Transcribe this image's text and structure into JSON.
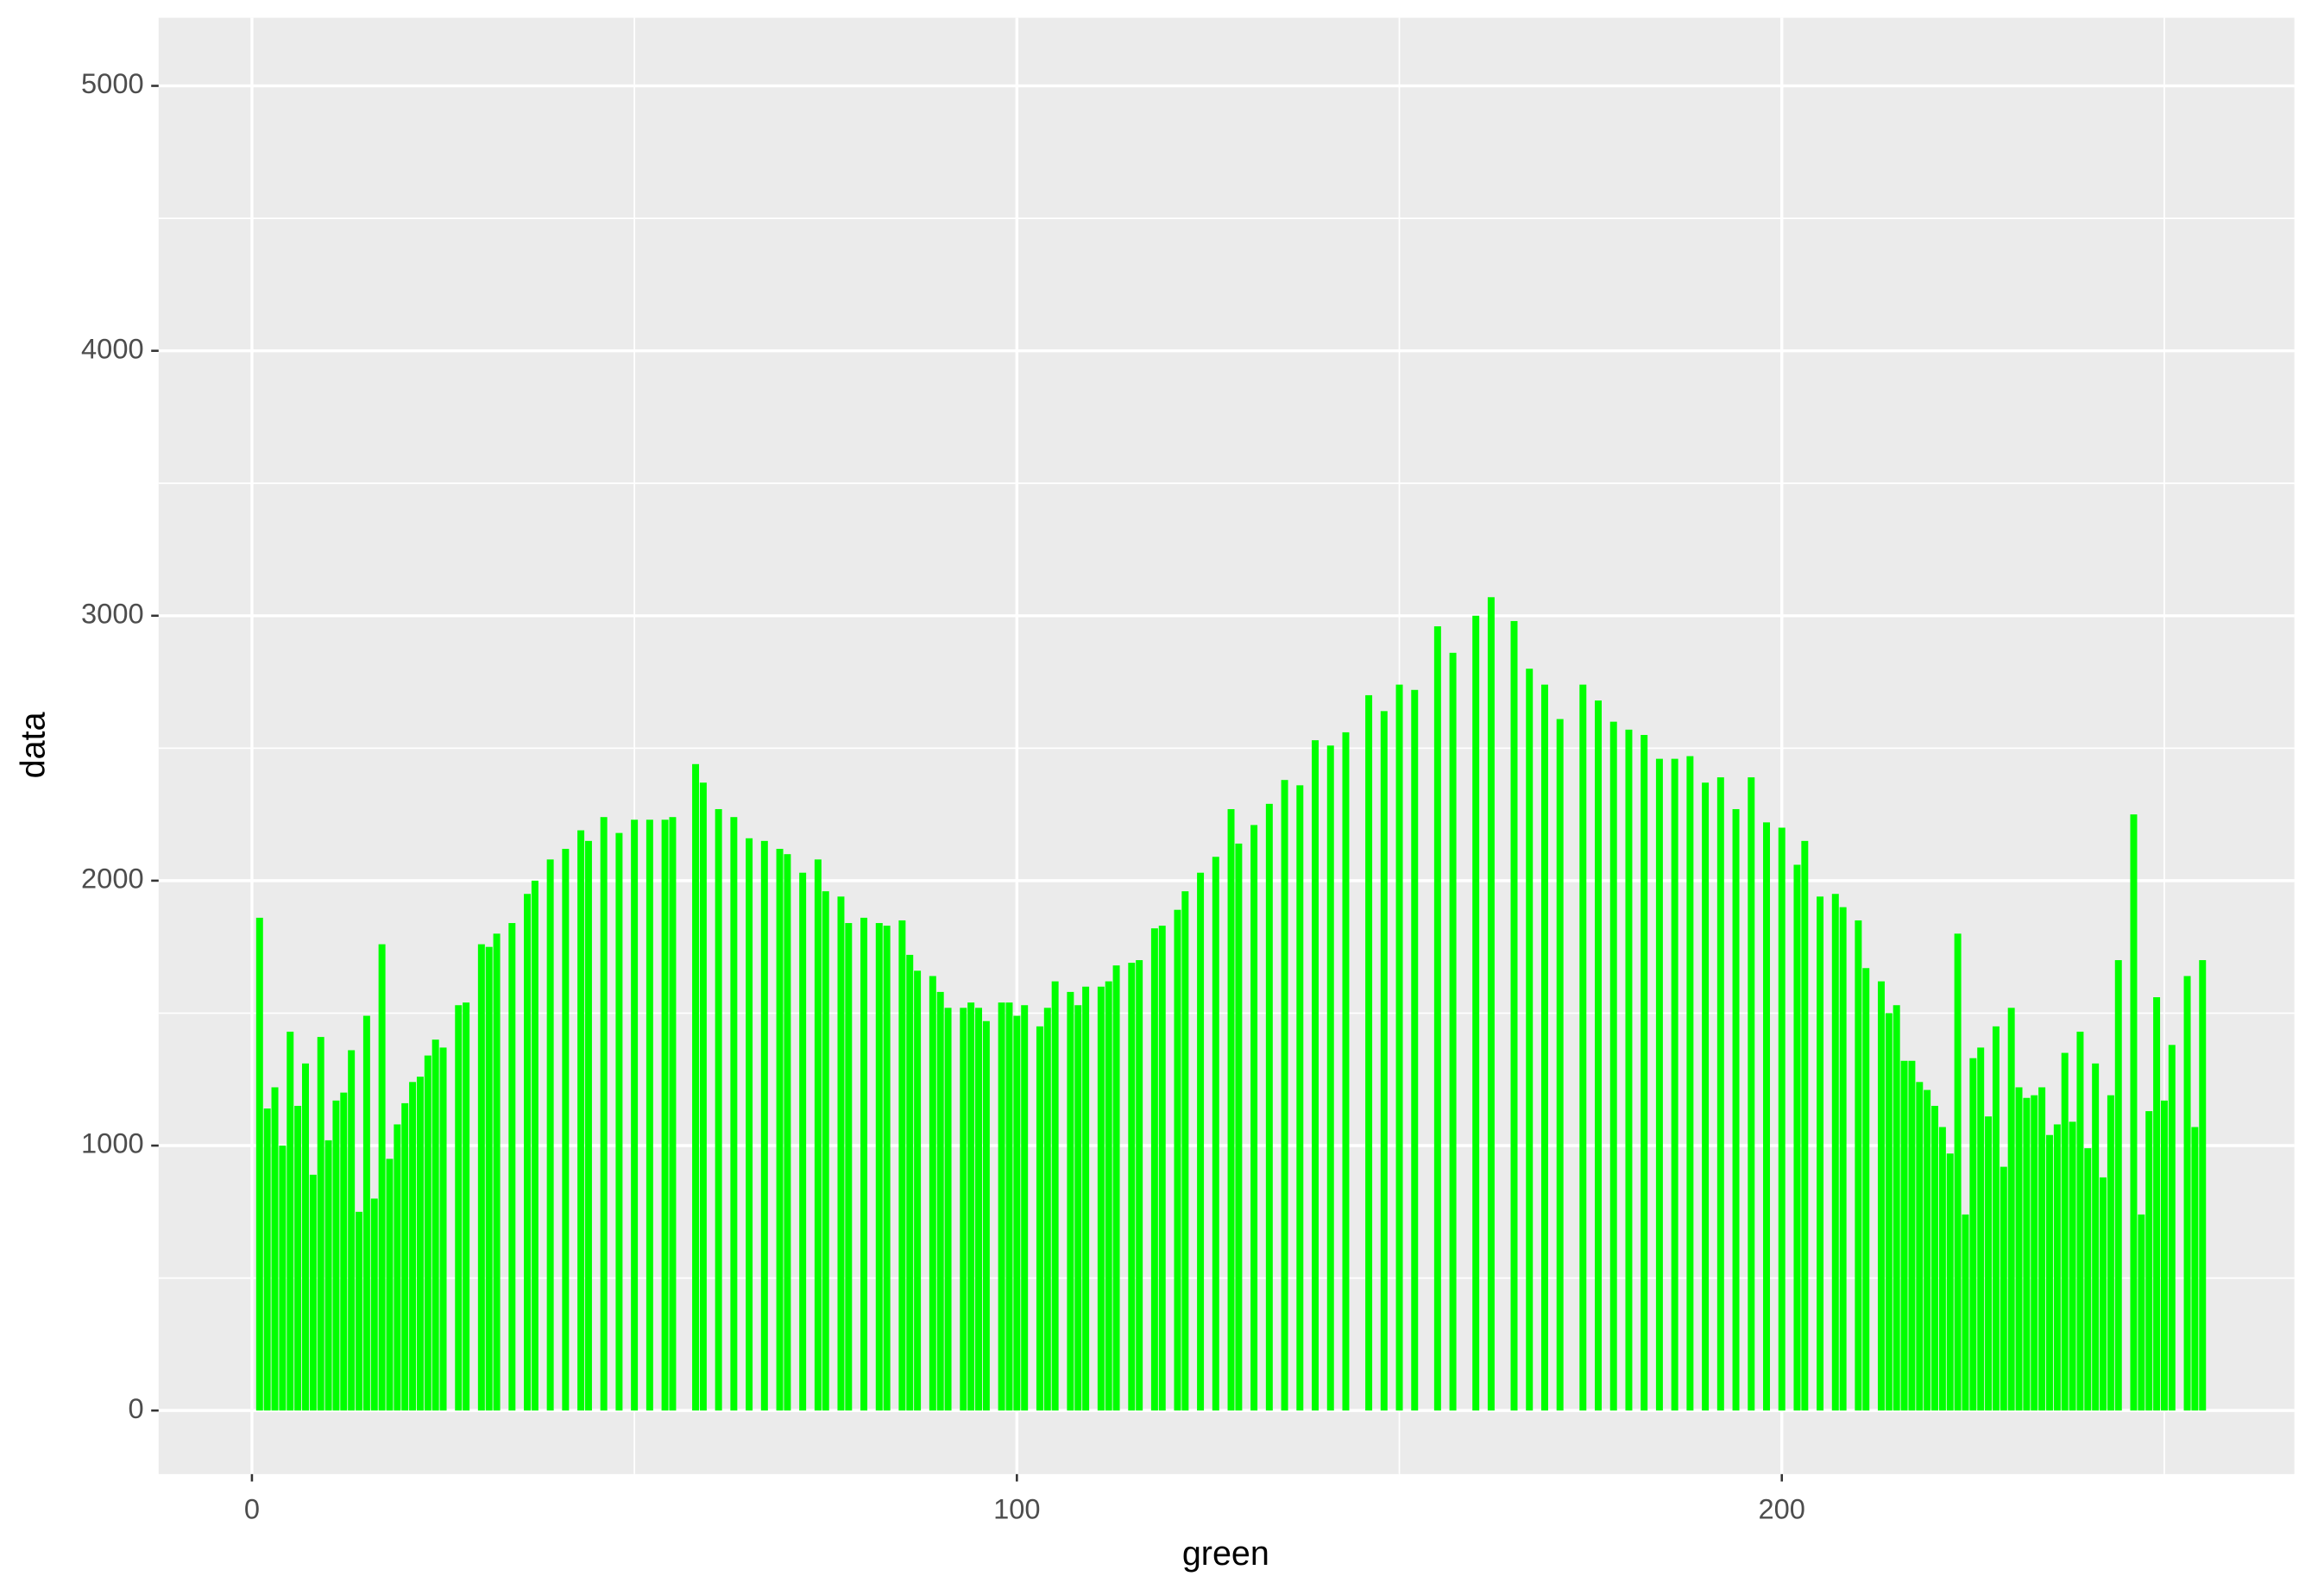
{
  "chart_data": {
    "type": "bar",
    "x_label": "green",
    "y_label": "data",
    "color": "#00ff00",
    "x": [
      1,
      2,
      3,
      4,
      5,
      6,
      7,
      8,
      9,
      10,
      11,
      12,
      13,
      14,
      15,
      16,
      17,
      18,
      19,
      20,
      21,
      22,
      23,
      24,
      25,
      27,
      28,
      30,
      31,
      32,
      34,
      36,
      37,
      39,
      41,
      43,
      44,
      46,
      48,
      50,
      52,
      54,
      55,
      58,
      59,
      61,
      63,
      65,
      67,
      69,
      70,
      72,
      74,
      75,
      77,
      78,
      80,
      82,
      83,
      85,
      86,
      87,
      89,
      90,
      91,
      93,
      94,
      95,
      96,
      98,
      99,
      100,
      101,
      103,
      104,
      105,
      107,
      108,
      109,
      111,
      112,
      113,
      115,
      116,
      118,
      119,
      121,
      122,
      124,
      126,
      128,
      129,
      131,
      133,
      135,
      137,
      139,
      141,
      143,
      146,
      148,
      150,
      152,
      155,
      157,
      160,
      162,
      165,
      167,
      169,
      171,
      174,
      176,
      178,
      180,
      182,
      184,
      186,
      188,
      190,
      192,
      194,
      196,
      198,
      200,
      202,
      203,
      205,
      207,
      208,
      210,
      211,
      213,
      214,
      215,
      216,
      217,
      218,
      219,
      220,
      221,
      222,
      223,
      224,
      225,
      226,
      227,
      228,
      229,
      230,
      231,
      232,
      233,
      234,
      235,
      236,
      237,
      238,
      239,
      240,
      241,
      242,
      243,
      244,
      246,
      247,
      248,
      249,
      250,
      251,
      253,
      254,
      255
    ],
    "values": [
      1860,
      1140,
      1220,
      1000,
      1430,
      1150,
      1310,
      890,
      1410,
      1020,
      1170,
      1200,
      1360,
      750,
      1490,
      800,
      1760,
      950,
      1080,
      1160,
      1240,
      1260,
      1340,
      1400,
      1370,
      1530,
      1540,
      1760,
      1750,
      1800,
      1840,
      1950,
      2000,
      2080,
      2120,
      2190,
      2150,
      2240,
      2180,
      2230,
      2230,
      2230,
      2240,
      2440,
      2370,
      2270,
      2240,
      2160,
      2150,
      2120,
      2100,
      2030,
      2080,
      1960,
      1940,
      1840,
      1860,
      1840,
      1830,
      1850,
      1720,
      1660,
      1640,
      1580,
      1520,
      1520,
      1540,
      1520,
      1470,
      1540,
      1540,
      1490,
      1530,
      1450,
      1520,
      1620,
      1580,
      1530,
      1600,
      1600,
      1620,
      1680,
      1690,
      1700,
      1820,
      1830,
      1890,
      1960,
      2030,
      2090,
      2270,
      2140,
      2210,
      2290,
      2380,
      2360,
      2530,
      2510,
      2560,
      2700,
      2640,
      2740,
      2720,
      2960,
      2860,
      3000,
      3070,
      2980,
      2800,
      2740,
      2610,
      2740,
      2680,
      2600,
      2570,
      2550,
      2460,
      2460,
      2470,
      2370,
      2390,
      2270,
      2390,
      2220,
      2200,
      2060,
      2150,
      1940,
      1950,
      1900,
      1850,
      1670,
      1620,
      1500,
      1530,
      1320,
      1320,
      1240,
      1210,
      1150,
      1070,
      970,
      1800,
      740,
      1330,
      1370,
      1110,
      1450,
      920,
      1520,
      1220,
      1180,
      1190,
      1220,
      1040,
      1080,
      1350,
      1090,
      1430,
      990,
      1310,
      880,
      1190,
      1700,
      2250,
      740,
      1130,
      1560,
      1170,
      1380,
      1640,
      1070,
      1700
    ],
    "xlim": [
      -12.2,
      267
    ],
    "ylim": [
      -240,
      5257
    ],
    "xticks": [
      0,
      100,
      200
    ],
    "yticks": [
      0,
      1000,
      2000,
      3000,
      4000,
      5000
    ],
    "xminor": [
      50,
      150,
      250
    ],
    "yminor": [
      500,
      1500,
      2500,
      3500,
      4500
    ],
    "grid": true
  }
}
